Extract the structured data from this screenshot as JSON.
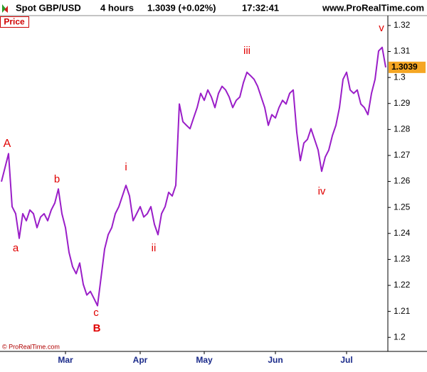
{
  "header": {
    "symbol": "Spot GBP/USD",
    "period": "4 hours",
    "quote": "1.3039 (+0.02%)",
    "time": "17:32:41",
    "site": "www.ProRealTime.com"
  },
  "panel_label": "Price",
  "copyright": "© ProRealTime.com",
  "chart_data": {
    "type": "line",
    "price_tag": "1.3039",
    "annotations": [
      "A",
      "a",
      "b",
      "c",
      "B",
      "i",
      "ii",
      "iii",
      "iv",
      "v"
    ],
    "x": [
      0,
      1,
      2,
      3,
      4,
      5,
      6,
      7,
      8,
      9,
      10,
      11,
      12,
      13,
      14,
      15,
      16,
      17,
      18,
      19,
      20,
      21,
      22,
      23,
      24,
      25,
      26,
      27,
      28,
      29,
      30,
      31,
      32,
      33,
      34,
      35,
      36,
      37,
      38,
      39,
      40,
      41,
      42,
      43,
      44,
      45,
      46,
      47,
      48,
      49,
      50,
      51,
      52,
      53,
      54,
      55,
      56,
      57,
      58,
      59,
      60,
      61,
      62,
      63,
      64,
      65,
      66,
      67,
      68,
      69,
      70,
      71,
      72,
      73,
      74,
      75,
      76,
      77,
      78,
      79,
      80,
      81,
      82,
      83,
      84,
      85,
      86,
      87,
      88,
      89,
      90,
      91,
      92,
      93,
      94,
      95,
      96,
      97,
      98,
      99,
      100,
      101,
      102,
      103,
      104,
      105,
      106,
      107,
      108
    ],
    "series": [
      {
        "name": "Spot GBP/USD",
        "color": "#9a1ec8",
        "values": [
          1.2599,
          1.2653,
          1.2707,
          1.2503,
          1.2476,
          1.2381,
          1.2476,
          1.2449,
          1.249,
          1.2476,
          1.2422,
          1.2463,
          1.2476,
          1.2449,
          1.249,
          1.2517,
          1.2571,
          1.2476,
          1.2422,
          1.2327,
          1.2272,
          1.2245,
          1.2286,
          1.2204,
          1.2163,
          1.2177,
          1.215,
          1.2122,
          1.2231,
          1.234,
          1.2395,
          1.2422,
          1.2476,
          1.2503,
          1.2544,
          1.2585,
          1.2544,
          1.2449,
          1.2476,
          1.2503,
          1.2463,
          1.2476,
          1.2503,
          1.2435,
          1.2395,
          1.2476,
          1.2503,
          1.2558,
          1.2544,
          1.2585,
          1.2898,
          1.283,
          1.2816,
          1.2803,
          1.2844,
          1.2884,
          1.2939,
          1.2912,
          1.2952,
          1.2925,
          1.2884,
          1.2939,
          1.2966,
          1.2952,
          1.2925,
          1.2884,
          1.2912,
          1.2925,
          1.298,
          1.302,
          1.3007,
          1.2993,
          1.2966,
          1.2925,
          1.2884,
          1.2816,
          1.2857,
          1.2844,
          1.2884,
          1.2912,
          1.2898,
          1.2939,
          1.2952,
          1.2789,
          1.268,
          1.2748,
          1.2762,
          1.2803,
          1.2762,
          1.2721,
          1.2639,
          1.2694,
          1.2721,
          1.2776,
          1.2816,
          1.2884,
          1.2993,
          1.302,
          1.2952,
          1.2939,
          1.2952,
          1.2898,
          1.2884,
          1.2857,
          1.2939,
          1.2993,
          1.3102,
          1.3116,
          1.3039
        ]
      }
    ],
    "xlim": [
      -0.4,
      108.6
    ],
    "xticks": [
      {
        "value": 18,
        "label": "Mar"
      },
      {
        "value": 39,
        "label": "Apr"
      },
      {
        "value": 57,
        "label": "May"
      },
      {
        "value": 77,
        "label": "Jun"
      },
      {
        "value": 97,
        "label": "Jul"
      }
    ],
    "ylim": [
      1.1946,
      1.3238
    ],
    "yticks": [
      1.2,
      1.21,
      1.22,
      1.23,
      1.24,
      1.25,
      1.26,
      1.27,
      1.28,
      1.29,
      1.3,
      1.31,
      1.32
    ],
    "grid": false
  }
}
